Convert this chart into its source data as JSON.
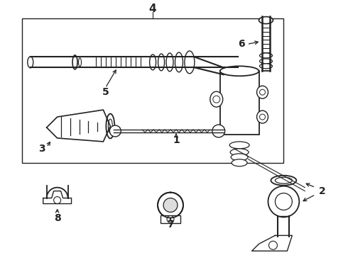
{
  "bg_color": "#ffffff",
  "line_color": "#222222",
  "figsize": [
    4.9,
    3.6
  ],
  "dpi": 100
}
